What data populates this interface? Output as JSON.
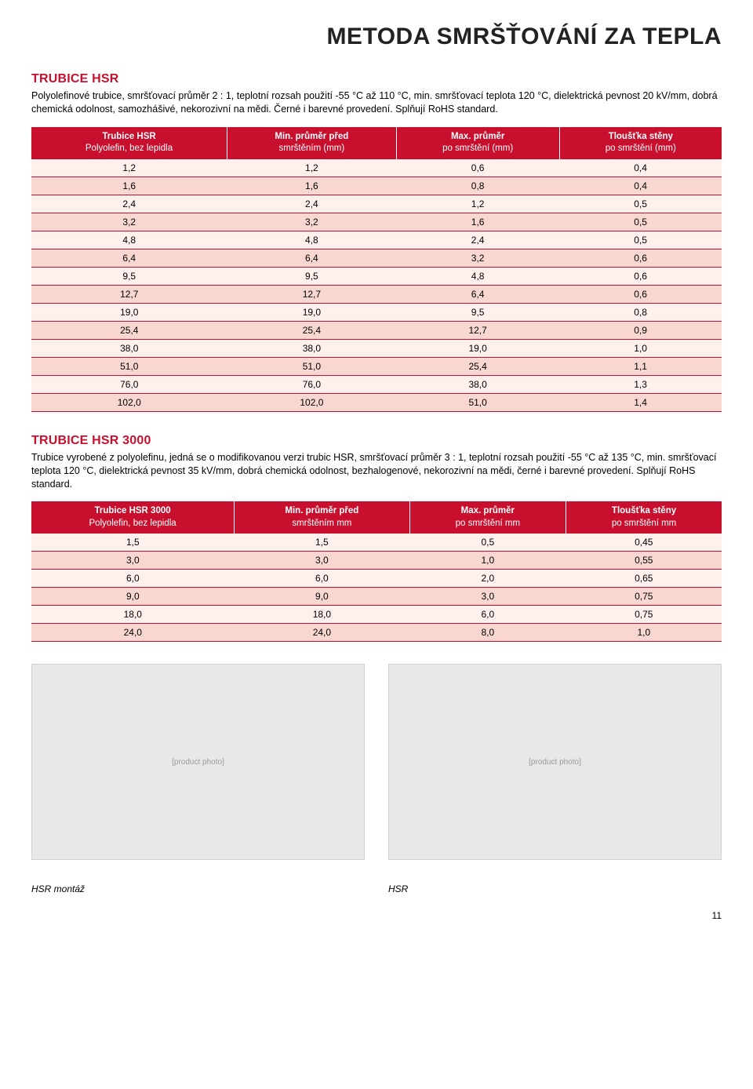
{
  "page": {
    "title": "METODA SMRŠŤOVÁNÍ ZA TEPLA",
    "number": "11"
  },
  "section1": {
    "heading": "TRUBICE HSR",
    "description": "Polyolefinové trubice, smršťovací průměr 2 : 1, teplotní rozsah použití -55 °C až 110 °C, min. smršťovací teplota 120 °C, dielektrická pevnost 20 kV/mm, dobrá chemická odolnost, samozhášivé, nekorozivní na mědi. Černé i barevné provedení. Splňují RoHS standard.",
    "table": {
      "columns": [
        {
          "top": "Trubice HSR",
          "bottom": "Polyolefin, bez lepidla"
        },
        {
          "top": "Min. průměr před",
          "bottom": "smrštěním (mm)"
        },
        {
          "top": "Max. průměr",
          "bottom": "po smrštění (mm)"
        },
        {
          "top": "Tloušťka stěny",
          "bottom": "po smrštění (mm)"
        }
      ],
      "rows": [
        [
          "1,2",
          "1,2",
          "0,6",
          "0,4"
        ],
        [
          "1,6",
          "1,6",
          "0,8",
          "0,4"
        ],
        [
          "2,4",
          "2,4",
          "1,2",
          "0,5"
        ],
        [
          "3,2",
          "3,2",
          "1,6",
          "0,5"
        ],
        [
          "4,8",
          "4,8",
          "2,4",
          "0,5"
        ],
        [
          "6,4",
          "6,4",
          "3,2",
          "0,6"
        ],
        [
          "9,5",
          "9,5",
          "4,8",
          "0,6"
        ],
        [
          "12,7",
          "12,7",
          "6,4",
          "0,6"
        ],
        [
          "19,0",
          "19,0",
          "9,5",
          "0,8"
        ],
        [
          "25,4",
          "25,4",
          "12,7",
          "0,9"
        ],
        [
          "38,0",
          "38,0",
          "19,0",
          "1,0"
        ],
        [
          "51,0",
          "51,0",
          "25,4",
          "1,1"
        ],
        [
          "76,0",
          "76,0",
          "38,0",
          "1,3"
        ],
        [
          "102,0",
          "102,0",
          "51,0",
          "1,4"
        ]
      ],
      "header_bg": "#c8102e",
      "header_fg": "#ffffff",
      "row_odd_bg": "#fdf0ed",
      "row_even_bg": "#f7d7d0",
      "row_border": "#c8102e"
    }
  },
  "section2": {
    "heading": "TRUBICE HSR 3000",
    "description": "Trubice vyrobené z polyolefinu, jedná se o modifikovanou verzi trubic HSR, smršťovací průměr 3 : 1, teplotní rozsah použití -55 °C až 135 °C, min. smršťovací teplota 120 °C, dielektrická pevnost 35 kV/mm, dobrá chemická odolnost, bezhalogenové, nekorozivní na mědi, černé i barevné provedení. Splňují RoHS standard.",
    "table": {
      "columns": [
        {
          "top": "Trubice HSR 3000",
          "bottom": "Polyolefin, bez lepidla"
        },
        {
          "top": "Min. průměr před",
          "bottom": "smrštěním mm"
        },
        {
          "top": "Max. průměr",
          "bottom": "po smrštění mm"
        },
        {
          "top": "Tloušťka stěny",
          "bottom": "po smrštění mm"
        }
      ],
      "rows": [
        [
          "1,5",
          "1,5",
          "0,5",
          "0,45"
        ],
        [
          "3,0",
          "3,0",
          "1,0",
          "0,55"
        ],
        [
          "6,0",
          "6,0",
          "2,0",
          "0,65"
        ],
        [
          "9,0",
          "9,0",
          "3,0",
          "0,75"
        ],
        [
          "18,0",
          "18,0",
          "6,0",
          "0,75"
        ],
        [
          "24,0",
          "24,0",
          "8,0",
          "1,0"
        ]
      ],
      "header_bg": "#c8102e",
      "header_fg": "#ffffff",
      "row_odd_bg": "#fdf0ed",
      "row_even_bg": "#f7d7d0",
      "row_border": "#c8102e"
    }
  },
  "images": {
    "left_caption": "HSR montáž",
    "right_caption": "HSR",
    "left_alt": "[product photo]",
    "right_alt": "[product photo]"
  }
}
